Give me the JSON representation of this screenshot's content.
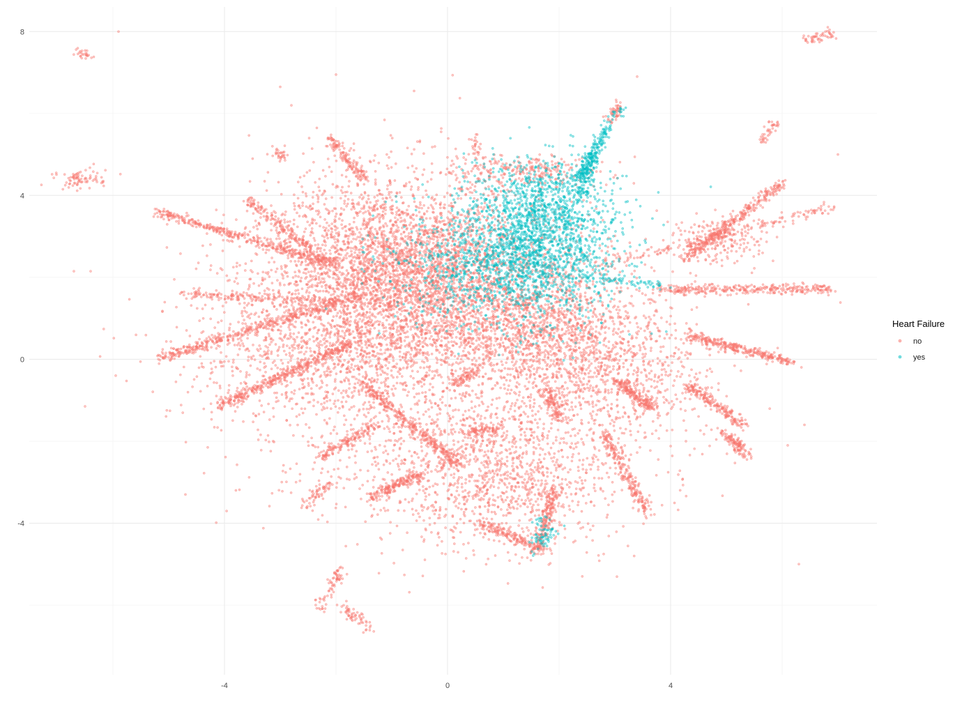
{
  "colors": {
    "no": "#F8766D",
    "yes": "#00BFC4"
  },
  "legend": {
    "title": "Heart Failure",
    "items": [
      {
        "label": "no",
        "color": "#F8766D"
      },
      {
        "label": "yes",
        "color": "#00BFC4"
      }
    ]
  },
  "chart_data": {
    "type": "scatter",
    "title": "",
    "xlabel": "",
    "ylabel": "",
    "xlim": [
      -7.5,
      7.7
    ],
    "ylim": [
      -7.7,
      8.6
    ],
    "x_ticks": [
      -4,
      0,
      4
    ],
    "y_ticks": [
      -4,
      0,
      4,
      8
    ],
    "x_tick_labels": [
      "-4",
      "0",
      "4"
    ],
    "y_tick_labels": [
      "-4",
      "0",
      "4",
      "8"
    ],
    "grid": true,
    "legend_position": "right",
    "series": [
      {
        "name": "no",
        "color": "#F8766D",
        "clusters": [
          {
            "cx": -1.0,
            "cy": 2.3,
            "sx": 1.2,
            "sy": 1.1,
            "n": 3000
          },
          {
            "cx": 0.3,
            "cy": 1.5,
            "sx": 1.5,
            "sy": 1.2,
            "n": 1500
          },
          {
            "cx": -2.0,
            "cy": 0.2,
            "sx": 1.4,
            "sy": 0.9,
            "n": 1000
          },
          {
            "cx": 1.0,
            "cy": -2.9,
            "sx": 1.0,
            "sy": 0.9,
            "n": 900
          },
          {
            "cx": 2.9,
            "cy": -0.4,
            "sx": 1.0,
            "sy": 0.8,
            "n": 800
          },
          {
            "cx": 1.8,
            "cy": 0.8,
            "sx": 0.8,
            "sy": 0.7,
            "n": 700
          },
          {
            "cx": 0.0,
            "cy": 0.0,
            "sx": 1.7,
            "sy": 1.6,
            "n": 800
          },
          {
            "cx": 0.3,
            "cy": -2.4,
            "sx": 2.0,
            "sy": 1.0,
            "n": 500
          },
          {
            "cx": 1.3,
            "cy": 4.6,
            "sx": 0.6,
            "sy": 0.2,
            "n": 250
          },
          {
            "cx": 4.9,
            "cy": 2.9,
            "sx": 0.4,
            "sy": 0.3,
            "n": 200
          },
          {
            "cx": -6.6,
            "cy": 4.4,
            "sx": 0.25,
            "sy": 0.12,
            "n": 80
          }
        ],
        "filaments": [
          {
            "x0": -5.2,
            "y0": 0.0,
            "x1": -1.5,
            "y1": 1.6,
            "n": 420
          },
          {
            "x0": -5.2,
            "y0": 3.6,
            "x1": -2.0,
            "y1": 2.3,
            "n": 380
          },
          {
            "x0": -4.2,
            "y0": -1.2,
            "x1": -1.7,
            "y1": 0.4,
            "n": 400
          },
          {
            "x0": -4.8,
            "y0": 1.6,
            "x1": -2.0,
            "y1": 1.4,
            "n": 180
          },
          {
            "x0": -3.6,
            "y0": 3.9,
            "x1": -2.2,
            "y1": 2.4,
            "n": 200
          },
          {
            "x0": -2.1,
            "y0": 5.4,
            "x1": -1.5,
            "y1": 4.4,
            "n": 150
          },
          {
            "x0": -1.4,
            "y0": -3.4,
            "x1": -0.5,
            "y1": -2.8,
            "n": 200
          },
          {
            "x0": -2.3,
            "y0": -2.4,
            "x1": -1.3,
            "y1": -1.6,
            "n": 150
          },
          {
            "x0": -1.6,
            "y0": -0.5,
            "x1": 0.2,
            "y1": -2.6,
            "n": 350
          },
          {
            "x0": -2.6,
            "y0": -3.6,
            "x1": -2.1,
            "y1": -3.0,
            "n": 60
          },
          {
            "x0": -1.9,
            "y0": -5.1,
            "x1": -2.3,
            "y1": -6.1,
            "n": 70
          },
          {
            "x0": -1.9,
            "y0": -6.0,
            "x1": -1.4,
            "y1": -6.6,
            "n": 60
          },
          {
            "x0": 3.8,
            "y0": 1.7,
            "x1": 6.9,
            "y1": 1.7,
            "n": 330
          },
          {
            "x0": 4.2,
            "y0": 2.4,
            "x1": 6.0,
            "y1": 4.3,
            "n": 330
          },
          {
            "x0": 4.3,
            "y0": 0.6,
            "x1": 6.2,
            "y1": -0.1,
            "n": 300
          },
          {
            "x0": 4.3,
            "y0": -0.6,
            "x1": 5.3,
            "y1": -1.6,
            "n": 200
          },
          {
            "x0": 5.0,
            "y0": -1.8,
            "x1": 5.4,
            "y1": -2.4,
            "n": 120
          },
          {
            "x0": 3.0,
            "y0": -0.5,
            "x1": 3.7,
            "y1": -1.2,
            "n": 200
          },
          {
            "x0": 2.8,
            "y0": -1.8,
            "x1": 3.6,
            "y1": -3.8,
            "n": 230
          },
          {
            "x0": 1.9,
            "y0": -3.2,
            "x1": 1.6,
            "y1": -4.7,
            "n": 200
          },
          {
            "x0": 0.6,
            "y0": -4.0,
            "x1": 1.8,
            "y1": -4.7,
            "n": 160
          },
          {
            "x0": 1.8,
            "y0": -0.8,
            "x1": 2.0,
            "y1": -1.5,
            "n": 100
          },
          {
            "x0": 0.3,
            "y0": -1.8,
            "x1": 0.9,
            "y1": -1.7,
            "n": 90
          },
          {
            "x0": 0.1,
            "y0": -0.6,
            "x1": 0.5,
            "y1": -0.3,
            "n": 70
          },
          {
            "x0": 2.7,
            "y0": 2.3,
            "x1": 6.9,
            "y1": 3.7,
            "n": 180
          },
          {
            "x0": 3.1,
            "y0": 6.2,
            "x1": 2.9,
            "y1": 5.8,
            "n": 50
          },
          {
            "x0": 5.6,
            "y0": 5.3,
            "x1": 5.9,
            "y1": 5.8,
            "n": 40
          },
          {
            "x0": -3.1,
            "y0": 5.1,
            "x1": -2.9,
            "y1": 4.9,
            "n": 30
          },
          {
            "x0": -6.6,
            "y0": 7.5,
            "x1": -6.4,
            "y1": 7.4,
            "n": 25
          },
          {
            "x0": 6.4,
            "y0": 7.8,
            "x1": 6.9,
            "y1": 7.95,
            "n": 50
          },
          {
            "x0": 0.4,
            "y0": 5.4,
            "x1": 0.5,
            "y1": 5.1,
            "n": 20
          }
        ],
        "points": [
          [
            -5.9,
            8.0
          ],
          [
            -2.0,
            6.95
          ],
          [
            -3.0,
            6.65
          ],
          [
            -2.8,
            6.2
          ],
          [
            -0.8,
            3.55
          ],
          [
            -6.7,
            2.15
          ],
          [
            -6.4,
            2.15
          ],
          [
            -6.5,
            -1.15
          ],
          [
            -4.3,
            -2.15
          ],
          [
            -4.7,
            -3.3
          ],
          [
            3.4,
            6.9
          ],
          [
            6.3,
            -5.0
          ],
          [
            7.0,
            5.0
          ],
          [
            6.4,
            -1.6
          ],
          [
            6.1,
            -2.1
          ],
          [
            -0.6,
            6.55
          ],
          [
            -4.9,
            1.95
          ]
        ]
      },
      {
        "name": "yes",
        "color": "#00BFC4",
        "clusters": [
          {
            "cx": 1.6,
            "cy": 2.8,
            "sx": 0.75,
            "sy": 0.85,
            "n": 1800
          },
          {
            "cx": 0.6,
            "cy": 2.1,
            "sx": 0.8,
            "sy": 0.6,
            "n": 350
          },
          {
            "cx": 1.8,
            "cy": 3.9,
            "sx": 0.5,
            "sy": 0.5,
            "n": 350
          },
          {
            "cx": 1.7,
            "cy": -4.3,
            "sx": 0.12,
            "sy": 0.25,
            "n": 70
          },
          {
            "cx": -0.1,
            "cy": 2.3,
            "sx": 0.9,
            "sy": 0.7,
            "n": 120
          }
        ],
        "filaments": [
          {
            "x0": 2.3,
            "y0": 4.3,
            "x1": 2.9,
            "y1": 5.7,
            "n": 180
          },
          {
            "x0": 2.4,
            "y0": 4.0,
            "x1": 2.6,
            "y1": 5.0,
            "n": 100
          },
          {
            "x0": 2.5,
            "y0": 2.0,
            "x1": 3.9,
            "y1": 1.8,
            "n": 60
          },
          {
            "x0": 2.9,
            "y0": 5.8,
            "x1": 3.1,
            "y1": 6.1,
            "n": 20
          }
        ],
        "points": [
          [
            3.8,
            1.8
          ],
          [
            3.0,
            2.7
          ],
          [
            4.0,
            1.75
          ]
        ]
      }
    ]
  }
}
